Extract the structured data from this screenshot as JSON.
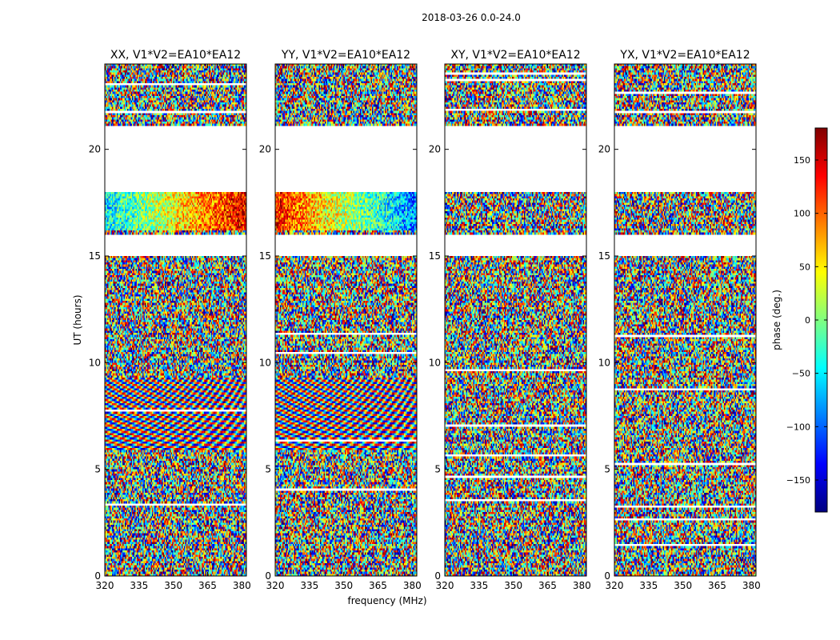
{
  "figure": {
    "title": "2018-03-26 0.0-24.0"
  },
  "chart_data": {
    "type": "heatmap",
    "xlabel": "frequency (MHz)",
    "ylabel": "UT (hours)",
    "xlim": [
      320,
      382
    ],
    "ylim": [
      0,
      24
    ],
    "x_ticks": [
      320,
      335,
      350,
      365,
      380
    ],
    "y_ticks": [
      0,
      5,
      10,
      15,
      20
    ],
    "panels": [
      {
        "title": "XX, V1*V2=EA10*EA12",
        "pattern": "fringes"
      },
      {
        "title": "YY, V1*V2=EA10*EA12",
        "pattern": "fringes"
      },
      {
        "title": "XY, V1*V2=EA10*EA12",
        "pattern": "noise"
      },
      {
        "title": "YX, V1*V2=EA10*EA12",
        "pattern": "noise"
      }
    ],
    "blank_intervals_hours": [
      [
        18.0,
        21.1
      ],
      [
        15.0,
        16.0
      ]
    ],
    "fringe_interval_hours": [
      5.9,
      9.3
    ],
    "smooth_gradient_interval_hours": [
      16.2,
      18.0
    ],
    "colorbar": {
      "label": "phase (deg.)",
      "range": [
        -180,
        180
      ],
      "ticks": [
        150,
        100,
        50,
        0,
        -50,
        -100,
        -150
      ],
      "tick_labels": [
        "150",
        "100",
        "50",
        "0",
        "−50",
        "−100",
        "−150"
      ],
      "colormap": "jet"
    }
  }
}
